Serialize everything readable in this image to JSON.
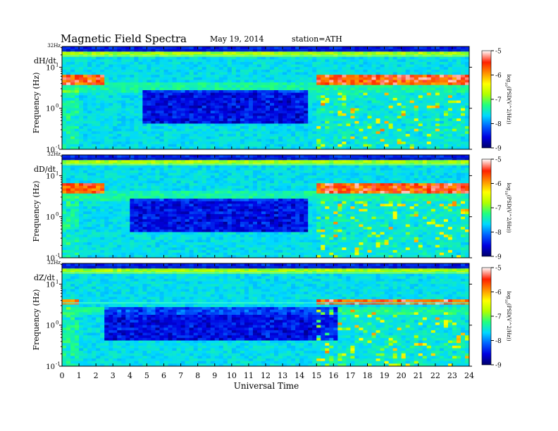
{
  "header": {
    "title": "Magnetic  Field  Spectra",
    "date": "May 19, 2014",
    "station": "station=ATH"
  },
  "colors": {
    "cmap": [
      "#00006a",
      "#0000e0",
      "#0060ff",
      "#00d8ff",
      "#20ff80",
      "#b0ff00",
      "#ffff00",
      "#ff9000",
      "#ff2000",
      "#ffffff"
    ]
  },
  "chart_data": {
    "type": "heatmap",
    "xlabel": "Universal Time",
    "xlim": [
      0,
      24
    ],
    "x_ticks": [
      "0",
      "1",
      "2",
      "3",
      "4",
      "5",
      "6",
      "7",
      "8",
      "9",
      "10",
      "11",
      "12",
      "13",
      "14",
      "15",
      "16",
      "17",
      "18",
      "19",
      "20",
      "21",
      "22",
      "23",
      "24"
    ],
    "ylabel": "Frequency (Hz)",
    "ylim": [
      0.1,
      32
    ],
    "y_scale": "log",
    "y_ticks": [
      {
        "label": "10",
        "exp": "-1",
        "value": 0.1
      },
      {
        "label": "10",
        "exp": "0",
        "value": 1
      },
      {
        "label": "10",
        "exp": "1",
        "value": 10
      }
    ],
    "y_top_label": "32Hz",
    "colorbar": {
      "label": "log10(PSD(V^2/Hz))",
      "label_parts": {
        "prefix": "log",
        "sub": "10",
        "rest": "(PSD(V^2/Hz))"
      },
      "range": [
        -9,
        -5
      ],
      "ticks": [
        "-5",
        "-6",
        "-7",
        "-8",
        "-9"
      ]
    },
    "panels": [
      {
        "name": "dH/dt",
        "band_intervals": [
          [
            0.1,
            2.4
          ],
          [
            15.0,
            24.0
          ]
        ],
        "quiet_intervals": [
          [
            4.8,
            14.6
          ]
        ],
        "line_freqs": [
          26,
          19
        ],
        "notes": "Strong 3-7 Hz emission 0.1-2.4 UT and 15-24 UT"
      },
      {
        "name": "dD/dt",
        "band_intervals": [
          [
            0.1,
            2.4
          ],
          [
            15.0,
            24.0
          ]
        ],
        "quiet_intervals": [
          [
            4.0,
            14.5
          ]
        ],
        "line_freqs": [
          26,
          19
        ],
        "notes": "Similar to dH/dt with broader quiet interval"
      },
      {
        "name": "dZ/dt",
        "band_intervals": [
          [
            0.1,
            1.0
          ],
          [
            15.0,
            24.0
          ]
        ],
        "quiet_intervals": [
          [
            2.5,
            16.2
          ]
        ],
        "line_freqs": [
          26,
          19,
          3.5
        ],
        "notes": "Weaker and narrower band near 3-4 Hz"
      }
    ]
  }
}
